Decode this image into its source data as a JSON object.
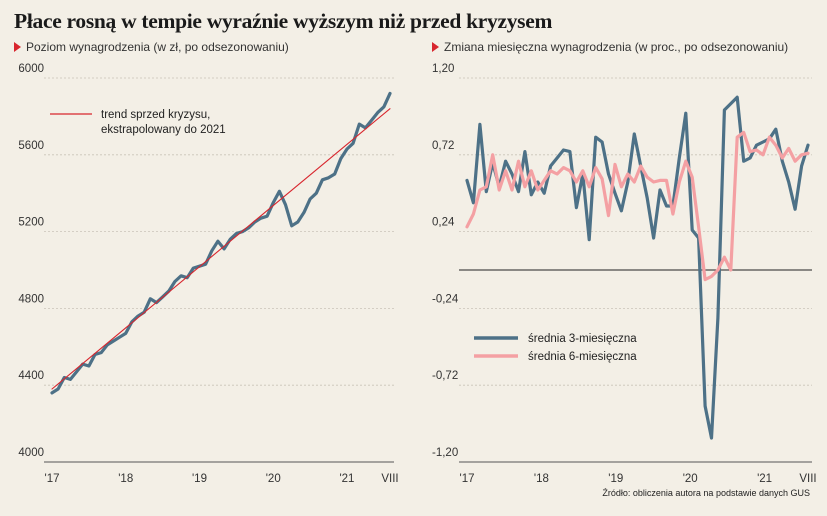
{
  "header": {
    "title": "Płace rosną w tempie wyraźnie wyższym niż przed kryzysem",
    "source": "Źródło: obliczenia autora na podstawie danych GUS"
  },
  "chart_data": [
    {
      "type": "line",
      "subtitle": "Poziom wynagrodzenia (w zł, po odsezonowaniu)",
      "x_labels": [
        "'17",
        "'18",
        "'19",
        "'20",
        "'21",
        "VIII"
      ],
      "x_start": "2017-01",
      "x_end": "2021-08",
      "ylim": [
        4000,
        6000
      ],
      "yticks": [
        4000,
        4400,
        4800,
        5200,
        5600,
        6000
      ],
      "grid": true,
      "legend_position": "top-left",
      "series": [
        {
          "name": "",
          "color": "#4d7187",
          "values": [
            4360,
            4380,
            4440,
            4430,
            4470,
            4510,
            4500,
            4560,
            4570,
            4610,
            4630,
            4650,
            4670,
            4730,
            4760,
            4780,
            4850,
            4830,
            4860,
            4890,
            4940,
            4970,
            4960,
            5010,
            5020,
            5030,
            5100,
            5150,
            5110,
            5160,
            5190,
            5200,
            5220,
            5250,
            5270,
            5280,
            5350,
            5410,
            5340,
            5230,
            5250,
            5300,
            5370,
            5400,
            5470,
            5480,
            5500,
            5580,
            5630,
            5660,
            5760,
            5740,
            5780,
            5820,
            5850,
            5920
          ]
        },
        {
          "name": "trend sprzed kryzysu, ekstrapolowany do 2021",
          "color": "#d8262e",
          "x_range": [
            "2017-01",
            "2021-08"
          ],
          "values": [
            4380,
            5840
          ]
        }
      ]
    },
    {
      "type": "line",
      "subtitle": "Zmiana miesięczna wynagrodzenia (w proc., po odsezonowaniu)",
      "x_labels": [
        "'17",
        "'18",
        "'19",
        "'20",
        "'21",
        "VIII"
      ],
      "x_start": "2017-01",
      "x_end": "2021-08",
      "ylim": [
        -1.2,
        1.2
      ],
      "yticks": [
        -1.2,
        -0.72,
        -0.24,
        0.24,
        0.72,
        1.2
      ],
      "ytick_labels": [
        "-1,20",
        "-0,72",
        "-0,24",
        "0,24",
        "0,72",
        "1,20"
      ],
      "zero_line": 0.0,
      "grid": true,
      "legend_position": "center-left",
      "series": [
        {
          "name": "średnia 3-miesięczna",
          "color": "#4d7187",
          "values": [
            0.56,
            0.42,
            0.91,
            0.49,
            0.67,
            0.52,
            0.68,
            0.6,
            0.49,
            0.74,
            0.47,
            0.55,
            0.48,
            0.65,
            0.7,
            0.75,
            0.74,
            0.39,
            0.6,
            0.19,
            0.83,
            0.8,
            0.6,
            0.48,
            0.37,
            0.55,
            0.85,
            0.65,
            0.45,
            0.2,
            0.5,
            0.4,
            0.4,
            0.7,
            0.98,
            0.25,
            0.2,
            -0.85,
            -1.05,
            -0.3,
            1.0,
            1.04,
            1.08,
            0.68,
            0.7,
            0.78,
            0.8,
            0.82,
            0.88,
            0.68,
            0.55,
            0.38,
            0.65,
            0.78
          ]
        },
        {
          "name": "średnia 6-miesięczna",
          "color": "#f4a0a3",
          "values": [
            0.27,
            0.35,
            0.5,
            0.52,
            0.72,
            0.5,
            0.62,
            0.5,
            0.68,
            0.52,
            0.62,
            0.5,
            0.56,
            0.62,
            0.6,
            0.64,
            0.62,
            0.55,
            0.62,
            0.52,
            0.64,
            0.57,
            0.34,
            0.66,
            0.52,
            0.6,
            0.55,
            0.65,
            0.58,
            0.55,
            0.56,
            0.56,
            0.35,
            0.55,
            0.68,
            0.58,
            0.27,
            -0.06,
            -0.04,
            0.0,
            0.08,
            0.0,
            0.83,
            0.86,
            0.74,
            0.75,
            0.72,
            0.83,
            0.78,
            0.7,
            0.76,
            0.68,
            0.72,
            0.73
          ]
        }
      ]
    }
  ]
}
